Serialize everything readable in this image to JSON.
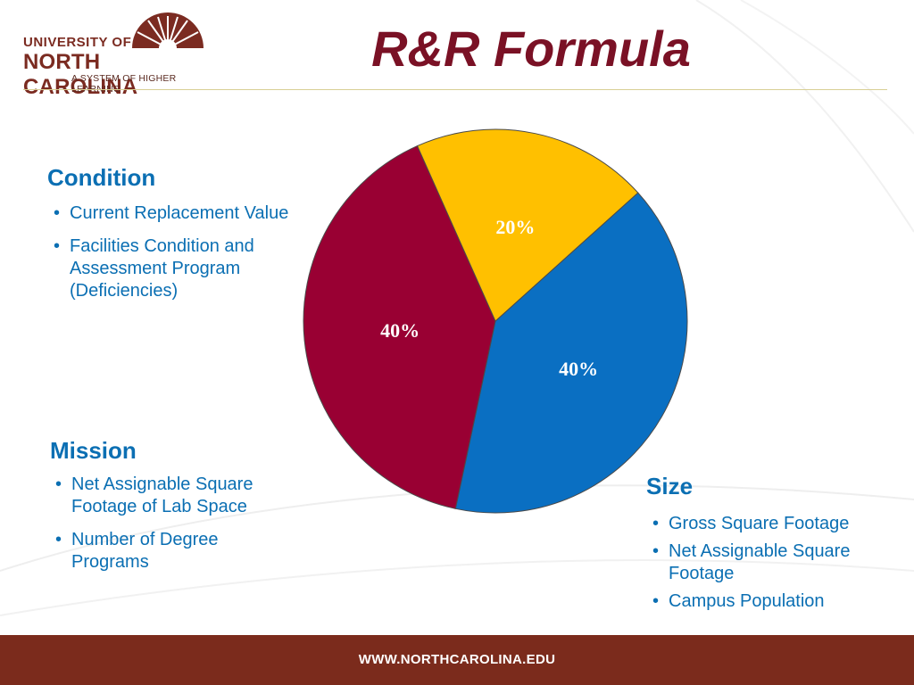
{
  "header": {
    "logo_line1": "UNIVERSITY OF",
    "logo_line2": "NORTH CAROLINA",
    "logo_line3": "A SYSTEM OF HIGHER LEARNING",
    "title": "R&R Formula"
  },
  "sections": {
    "condition": {
      "title": "Condition",
      "items": [
        "Current Replacement Value",
        "Facilities Condition and Assessment Program (Deficiencies)"
      ]
    },
    "mission": {
      "title": "Mission",
      "items": [
        "Net Assignable Square Footage of Lab Space",
        "Number of Degree Programs"
      ]
    },
    "size": {
      "title": "Size",
      "items": [
        "Gross Square Footage",
        "Net Assignable Square Footage",
        "Campus Population"
      ]
    }
  },
  "chart_data": {
    "type": "pie",
    "title": "",
    "slices": [
      {
        "category": "Condition",
        "value": 40,
        "label": "40%",
        "color": "#0a6fc2"
      },
      {
        "category": "Size",
        "value": 40,
        "label": "40%",
        "color": "#990033"
      },
      {
        "category": "Mission",
        "value": 20,
        "label": "20%",
        "color": "#ffc000"
      }
    ]
  },
  "footer": {
    "url": "WWW.NORTHCAROLINA.EDU"
  },
  "colors": {
    "brand": "#7b2b1c",
    "title": "#7a1125",
    "text_accent": "#0b6fb3"
  }
}
